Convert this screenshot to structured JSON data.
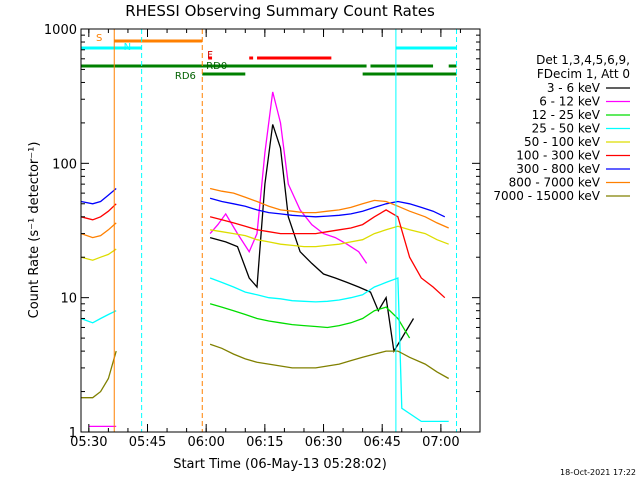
{
  "chart_data": {
    "type": "line",
    "title": "RHESSI Observing Summary Count Rates",
    "ylabel": "Count Rate (s⁻¹ detector⁻¹)",
    "xlabel": "Start Time (06-May-13 05:28:02)",
    "yscale": "log",
    "ylim": [
      1,
      1000
    ],
    "xlim": [
      "05:28",
      "07:10"
    ],
    "x_ticks": [
      "05:30",
      "05:45",
      "06:00",
      "06:15",
      "06:30",
      "06:45",
      "07:00"
    ],
    "y_ticks": [
      "1",
      "10",
      "100",
      "1000"
    ],
    "legend_header": [
      "Det 1,3,4,5,6,9,",
      "FDecim 1, Att 0"
    ],
    "footer_date": "18-Oct-2021 17:22",
    "bar_labels": {
      "saa": "S",
      "night": "N",
      "flare": "F",
      "rd0": "RD0",
      "rd6": "RD6"
    },
    "series": [
      {
        "name": "3 - 6 keV",
        "color": "#000000",
        "points": [
          [
            "06:01",
            28
          ],
          [
            "06:05",
            26
          ],
          [
            "06:08",
            24
          ],
          [
            "06:11",
            14
          ],
          [
            "06:13",
            12
          ],
          [
            "06:15",
            70
          ],
          [
            "06:17",
            195
          ],
          [
            "06:19",
            130
          ],
          [
            "06:21",
            40
          ],
          [
            "06:24",
            22
          ],
          [
            "06:27",
            18
          ],
          [
            "06:30",
            15
          ],
          [
            "06:33",
            14
          ],
          [
            "06:36",
            13
          ],
          [
            "06:39",
            12
          ],
          [
            "06:42",
            11
          ],
          [
            "06:44",
            8
          ],
          [
            "06:46",
            10
          ],
          [
            "06:48",
            4
          ],
          [
            "06:50",
            5
          ],
          [
            "06:53",
            7
          ]
        ]
      },
      {
        "name": "6 - 12 keV",
        "color": "#ff00ff",
        "points": [
          [
            "05:30",
            1.1
          ],
          [
            "05:34",
            1.1
          ],
          [
            "05:37",
            1.1
          ],
          [
            "06:01",
            30
          ],
          [
            "06:03",
            35
          ],
          [
            "06:05",
            42
          ],
          [
            "06:08",
            30
          ],
          [
            "06:11",
            22
          ],
          [
            "06:13",
            30
          ],
          [
            "06:15",
            120
          ],
          [
            "06:17",
            340
          ],
          [
            "06:19",
            200
          ],
          [
            "06:21",
            70
          ],
          [
            "06:24",
            45
          ],
          [
            "06:27",
            35
          ],
          [
            "06:30",
            30
          ],
          [
            "06:33",
            28
          ],
          [
            "06:36",
            25
          ],
          [
            "06:39",
            22
          ],
          [
            "06:41",
            18
          ]
        ]
      },
      {
        "name": "12 - 25 keV",
        "color": "#00dd00",
        "points": [
          [
            "06:01",
            9
          ],
          [
            "06:04",
            8.5
          ],
          [
            "06:07",
            8
          ],
          [
            "06:10",
            7.5
          ],
          [
            "06:13",
            7
          ],
          [
            "06:16",
            6.7
          ],
          [
            "06:19",
            6.5
          ],
          [
            "06:22",
            6.3
          ],
          [
            "06:25",
            6.2
          ],
          [
            "06:28",
            6.1
          ],
          [
            "06:31",
            6
          ],
          [
            "06:34",
            6.2
          ],
          [
            "06:37",
            6.5
          ],
          [
            "06:40",
            7
          ],
          [
            "06:43",
            8
          ],
          [
            "06:46",
            8.5
          ],
          [
            "06:49",
            7
          ],
          [
            "06:52",
            5
          ]
        ]
      },
      {
        "name": "25 - 50 keV",
        "color": "#00ffff",
        "points": [
          [
            "05:28",
            7
          ],
          [
            "05:31",
            6.5
          ],
          [
            "05:33",
            7
          ],
          [
            "05:35",
            7.5
          ],
          [
            "05:37",
            8
          ],
          [
            "06:01",
            14
          ],
          [
            "06:04",
            13
          ],
          [
            "06:07",
            12
          ],
          [
            "06:10",
            11
          ],
          [
            "06:13",
            10.5
          ],
          [
            "06:16",
            10
          ],
          [
            "06:19",
            9.8
          ],
          [
            "06:22",
            9.5
          ],
          [
            "06:25",
            9.4
          ],
          [
            "06:28",
            9.3
          ],
          [
            "06:31",
            9.4
          ],
          [
            "06:34",
            9.6
          ],
          [
            "06:37",
            10
          ],
          [
            "06:40",
            10.5
          ],
          [
            "06:43",
            12
          ],
          [
            "06:46",
            13
          ],
          [
            "06:49",
            14
          ],
          [
            "06:50",
            1.5
          ],
          [
            "06:55",
            1.2
          ],
          [
            "06:58",
            1.2
          ],
          [
            "07:02",
            1.2
          ]
        ]
      },
      {
        "name": "50 - 100 keV",
        "color": "#dddd00",
        "points": [
          [
            "05:28",
            20
          ],
          [
            "05:31",
            19
          ],
          [
            "05:33",
            20
          ],
          [
            "05:35",
            21
          ],
          [
            "05:37",
            23
          ],
          [
            "06:01",
            32
          ],
          [
            "06:04",
            31
          ],
          [
            "06:07",
            30
          ],
          [
            "06:10",
            29
          ],
          [
            "06:13",
            27
          ],
          [
            "06:16",
            26
          ],
          [
            "06:19",
            25
          ],
          [
            "06:22",
            24.5
          ],
          [
            "06:25",
            24
          ],
          [
            "06:28",
            24
          ],
          [
            "06:31",
            24.5
          ],
          [
            "06:34",
            25
          ],
          [
            "06:37",
            26
          ],
          [
            "06:40",
            27
          ],
          [
            "06:43",
            30
          ],
          [
            "06:46",
            32
          ],
          [
            "06:49",
            34
          ],
          [
            "06:52",
            32
          ],
          [
            "06:56",
            30
          ],
          [
            "06:59",
            27
          ],
          [
            "07:02",
            25
          ]
        ]
      },
      {
        "name": "100 - 300 keV",
        "color": "#ff0000",
        "points": [
          [
            "05:28",
            40
          ],
          [
            "05:31",
            38
          ],
          [
            "05:33",
            40
          ],
          [
            "05:35",
            44
          ],
          [
            "05:37",
            50
          ],
          [
            "06:01",
            40
          ],
          [
            "06:04",
            38
          ],
          [
            "06:07",
            36
          ],
          [
            "06:10",
            34
          ],
          [
            "06:13",
            32
          ],
          [
            "06:16",
            31
          ],
          [
            "06:19",
            30
          ],
          [
            "06:22",
            30
          ],
          [
            "06:25",
            30
          ],
          [
            "06:28",
            30
          ],
          [
            "06:31",
            31
          ],
          [
            "06:34",
            32
          ],
          [
            "06:37",
            33
          ],
          [
            "06:40",
            35
          ],
          [
            "06:43",
            40
          ],
          [
            "06:46",
            45
          ],
          [
            "06:49",
            40
          ],
          [
            "06:52",
            20
          ],
          [
            "06:55",
            14
          ],
          [
            "06:58",
            12
          ],
          [
            "07:01",
            10
          ]
        ]
      },
      {
        "name": "300 - 800 keV",
        "color": "#0000ff",
        "points": [
          [
            "05:28",
            52
          ],
          [
            "05:31",
            50
          ],
          [
            "05:33",
            52
          ],
          [
            "05:35",
            58
          ],
          [
            "05:37",
            65
          ],
          [
            "06:01",
            55
          ],
          [
            "06:04",
            52
          ],
          [
            "06:07",
            50
          ],
          [
            "06:10",
            48
          ],
          [
            "06:13",
            45
          ],
          [
            "06:16",
            43
          ],
          [
            "06:19",
            42
          ],
          [
            "06:22",
            41
          ],
          [
            "06:25",
            40.5
          ],
          [
            "06:28",
            40
          ],
          [
            "06:31",
            40.5
          ],
          [
            "06:34",
            41
          ],
          [
            "06:37",
            42
          ],
          [
            "06:40",
            44
          ],
          [
            "06:43",
            47
          ],
          [
            "06:46",
            50
          ],
          [
            "06:49",
            52
          ],
          [
            "06:52",
            50
          ],
          [
            "06:55",
            47
          ],
          [
            "06:58",
            44
          ],
          [
            "07:01",
            40
          ]
        ]
      },
      {
        "name": "800 - 7000 keV",
        "color": "#ff8000",
        "points": [
          [
            "05:28",
            30
          ],
          [
            "05:31",
            28
          ],
          [
            "05:33",
            29
          ],
          [
            "05:35",
            32
          ],
          [
            "05:37",
            36
          ],
          [
            "06:01",
            65
          ],
          [
            "06:04",
            62
          ],
          [
            "06:07",
            60
          ],
          [
            "06:10",
            56
          ],
          [
            "06:13",
            52
          ],
          [
            "06:16",
            48
          ],
          [
            "06:19",
            45
          ],
          [
            "06:22",
            44
          ],
          [
            "06:25",
            43
          ],
          [
            "06:28",
            43
          ],
          [
            "06:31",
            44
          ],
          [
            "06:34",
            45
          ],
          [
            "06:37",
            47
          ],
          [
            "06:40",
            50
          ],
          [
            "06:43",
            53
          ],
          [
            "06:46",
            52
          ],
          [
            "06:49",
            48
          ],
          [
            "06:52",
            44
          ],
          [
            "06:56",
            40
          ],
          [
            "06:59",
            36
          ],
          [
            "07:02",
            33
          ]
        ]
      },
      {
        "name": "7000 - 15000 keV",
        "color": "#808000",
        "points": [
          [
            "05:28",
            1.8
          ],
          [
            "05:31",
            1.8
          ],
          [
            "05:33",
            2
          ],
          [
            "05:35",
            2.5
          ],
          [
            "05:37",
            4
          ],
          [
            "06:01",
            4.5
          ],
          [
            "06:04",
            4.2
          ],
          [
            "06:07",
            3.8
          ],
          [
            "06:10",
            3.5
          ],
          [
            "06:13",
            3.3
          ],
          [
            "06:16",
            3.2
          ],
          [
            "06:19",
            3.1
          ],
          [
            "06:22",
            3
          ],
          [
            "06:25",
            3
          ],
          [
            "06:28",
            3
          ],
          [
            "06:31",
            3.1
          ],
          [
            "06:34",
            3.2
          ],
          [
            "06:37",
            3.4
          ],
          [
            "06:40",
            3.6
          ],
          [
            "06:43",
            3.8
          ],
          [
            "06:46",
            4
          ],
          [
            "06:49",
            4
          ],
          [
            "06:52",
            3.6
          ],
          [
            "06:56",
            3.2
          ],
          [
            "06:59",
            2.8
          ],
          [
            "07:02",
            2.5
          ]
        ]
      }
    ],
    "vertical_markers": [
      {
        "time": "05:36:30",
        "color": "#ff8000",
        "style": "solid"
      },
      {
        "time": "05:43:30",
        "color": "#00ffff",
        "style": "dashed"
      },
      {
        "time": "05:59:00",
        "color": "#ff8000",
        "style": "dashed"
      },
      {
        "time": "06:48:30",
        "color": "#00ffff",
        "style": "solid"
      },
      {
        "time": "07:04:00",
        "color": "#00ffff",
        "style": "dashed"
      }
    ],
    "status_bars": [
      {
        "label_key": "saa",
        "color": "#ff8000",
        "row": 1,
        "start": "05:36:30",
        "end": "05:59:00"
      },
      {
        "label_key": "night",
        "color": "#00ffff",
        "row": 2,
        "start": "05:28",
        "end": "05:43:30"
      },
      {
        "label_key": "night",
        "color": "#00ffff",
        "row": 2,
        "start": "06:48:30",
        "end": "07:04"
      },
      {
        "label_key": "flare",
        "color": "#ff0000",
        "row": 3,
        "start": "06:00:30",
        "end": "06:01:30"
      },
      {
        "label_key": "flare",
        "color": "#ff0000",
        "row": 3,
        "start": "06:11",
        "end": "06:12"
      },
      {
        "label_key": "flare",
        "color": "#ff0000",
        "row": 3,
        "start": "06:13",
        "end": "06:32"
      },
      {
        "label_key": "rd0",
        "color": "#008000",
        "row": 4,
        "start": "05:28",
        "end": "06:41"
      },
      {
        "label_key": "rd0",
        "color": "#008000",
        "row": 4,
        "start": "06:42",
        "end": "06:58"
      },
      {
        "label_key": "rd0",
        "color": "#008000",
        "row": 4,
        "start": "07:02",
        "end": "07:04"
      },
      {
        "label_key": "rd6",
        "color": "#008000",
        "row": 5,
        "start": "05:59",
        "end": "06:10"
      },
      {
        "label_key": "rd6",
        "color": "#008000",
        "row": 5,
        "start": "06:40",
        "end": "07:04"
      }
    ]
  }
}
